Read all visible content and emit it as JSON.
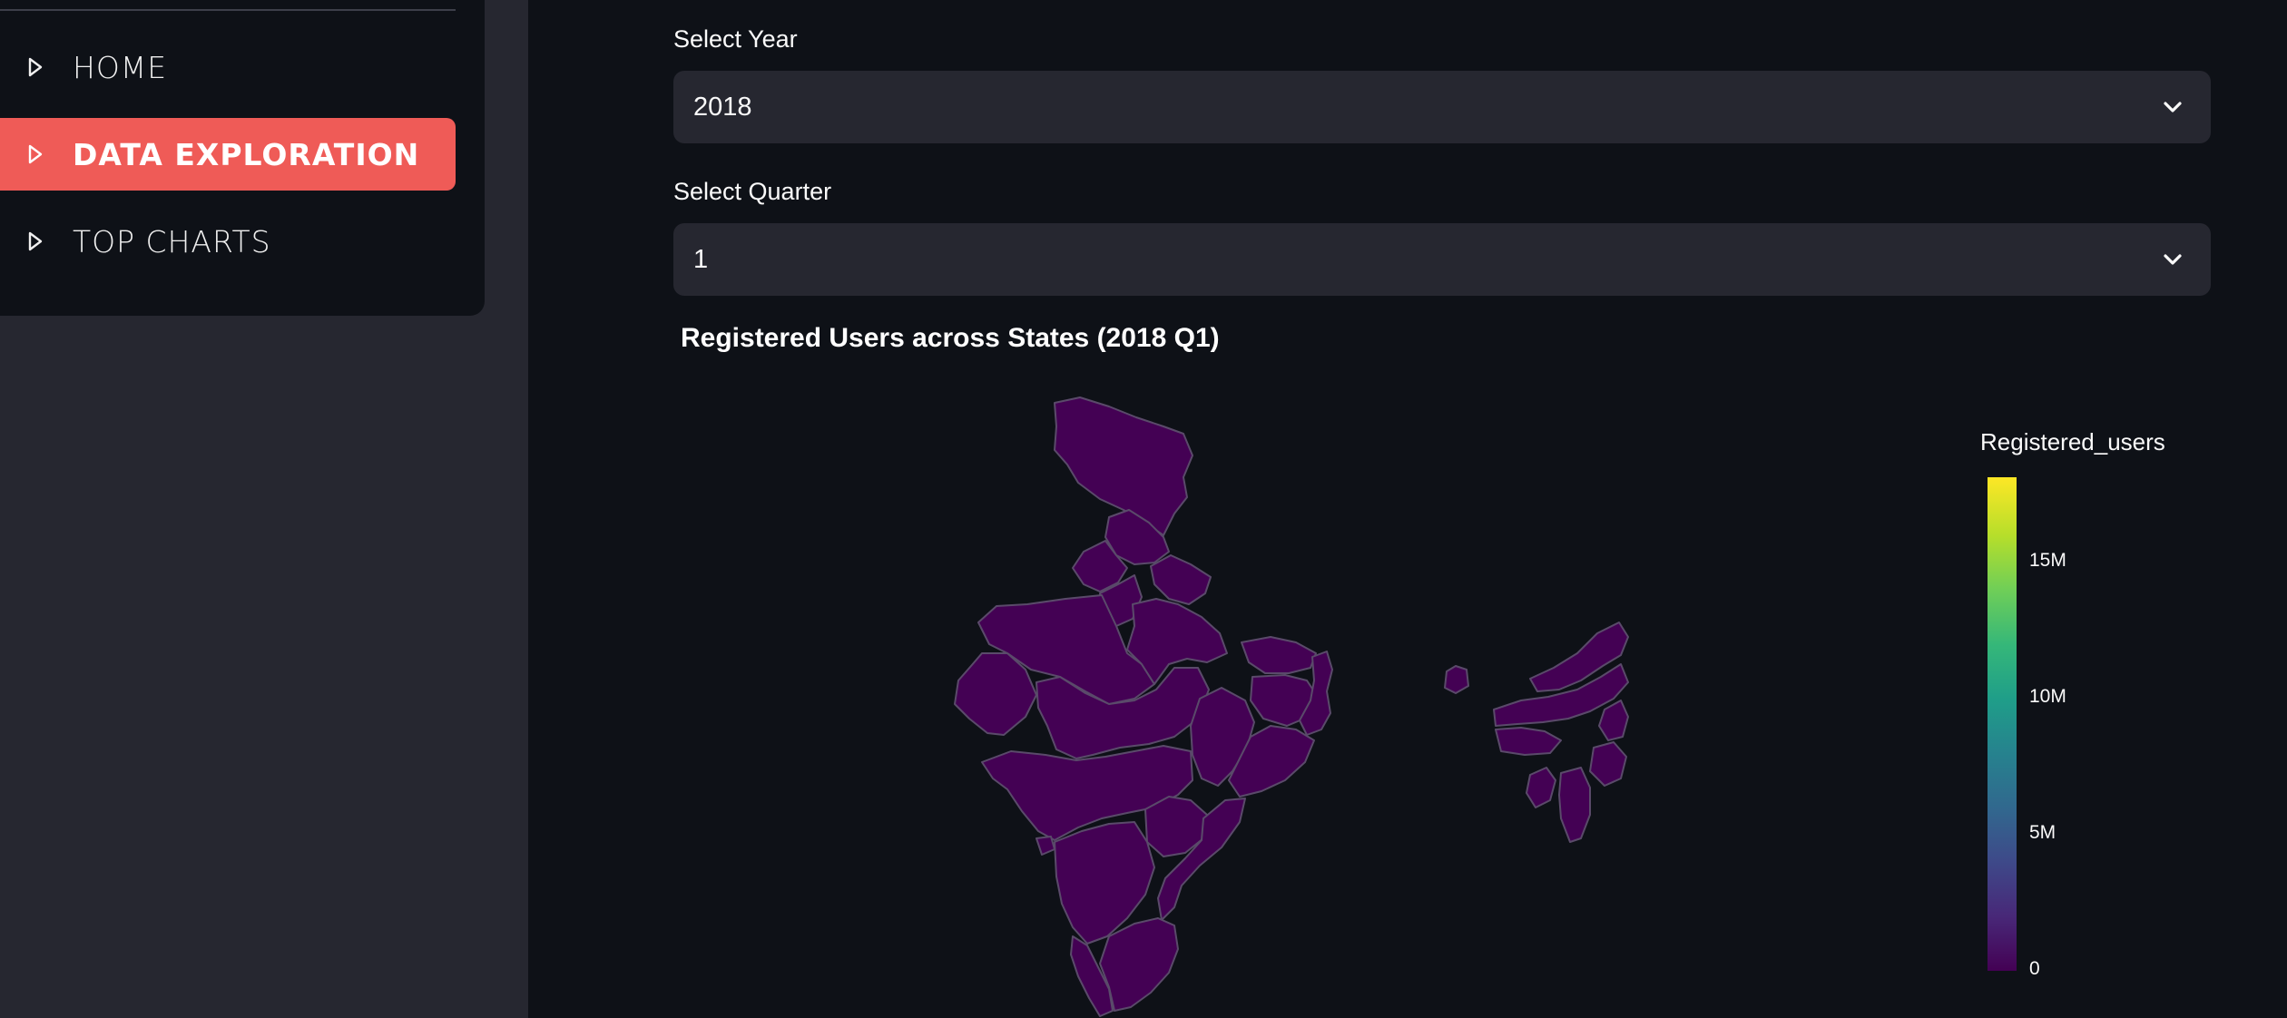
{
  "sidebar": {
    "menu": [
      {
        "label": "HOME",
        "active": false,
        "icon": "play-outline-icon"
      },
      {
        "label": "DATA EXPLORATION",
        "active": true,
        "icon": "play-outline-icon"
      },
      {
        "label": "TOP CHARTS",
        "active": false,
        "icon": "play-outline-icon"
      }
    ]
  },
  "filters": {
    "year": {
      "label": "Select Year",
      "value": "2018"
    },
    "quarter": {
      "label": "Select Quarter",
      "value": "1"
    }
  },
  "chart": {
    "title": "Registered Users across States (2018 Q1)",
    "colorbar_title": "Registered_users",
    "ticks": [
      "15M",
      "10M",
      "5M",
      "0"
    ]
  },
  "colors": {
    "accent": "#ef5b57",
    "background": "#0e1117",
    "sidebar": "#262730",
    "map_fill": "#440154",
    "map_border": "#5a4a6a"
  },
  "chart_data": {
    "type": "choropleth",
    "title": "Registered Users across States (2018 Q1)",
    "colorbar": {
      "title": "Registered_users",
      "range": [
        0,
        18000000
      ],
      "ticks": [
        "0",
        "5M",
        "10M",
        "15M"
      ],
      "colorscale": "Viridis"
    }
  }
}
